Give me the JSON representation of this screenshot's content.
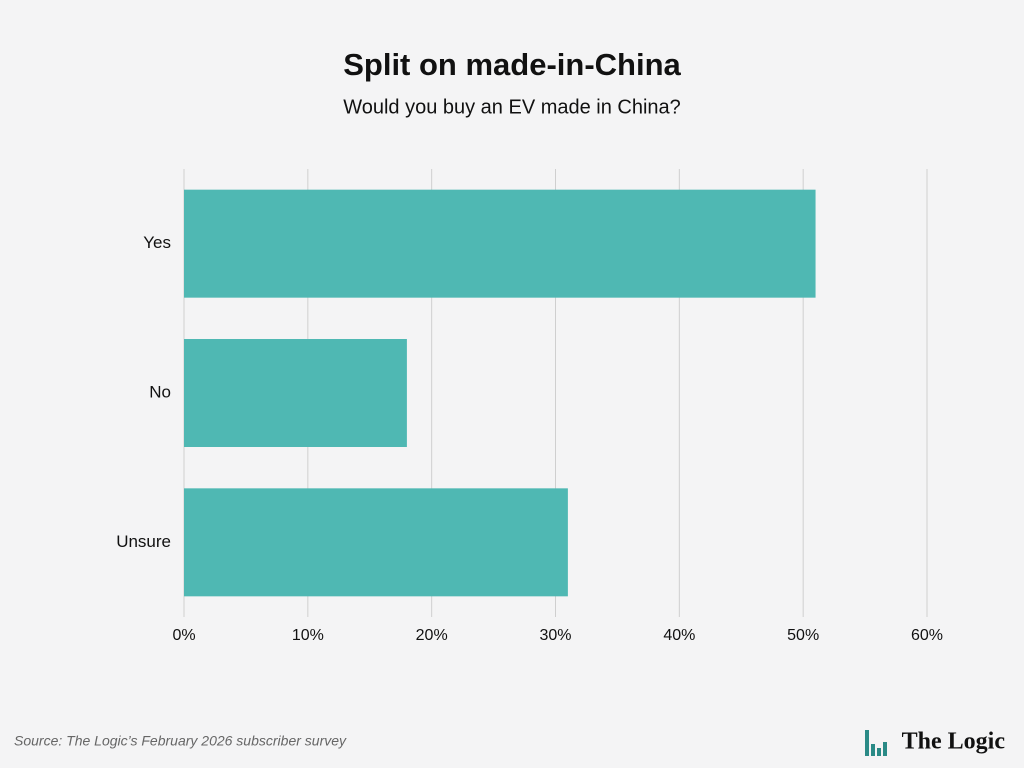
{
  "chart_data": {
    "type": "bar",
    "orientation": "horizontal",
    "title": "Split on made-in-China",
    "subtitle": "Would you buy an EV made in China?",
    "categories": [
      "Yes",
      "No",
      "Unsure"
    ],
    "values": [
      51,
      18,
      31
    ],
    "color": "#4fb8b3",
    "xlim": [
      0,
      60
    ],
    "xticks": [
      {
        "value": 0,
        "label": "0%"
      },
      {
        "value": 10,
        "label": "10%"
      },
      {
        "value": 20,
        "label": "20%"
      },
      {
        "value": 30,
        "label": "30%"
      },
      {
        "value": 40,
        "label": "40%"
      },
      {
        "value": 50,
        "label": "50%"
      },
      {
        "value": 60,
        "label": "60%"
      }
    ],
    "grid": true,
    "source": "Source: The Logic’s February 2026 subscriber survey",
    "brand": "The Logic"
  }
}
